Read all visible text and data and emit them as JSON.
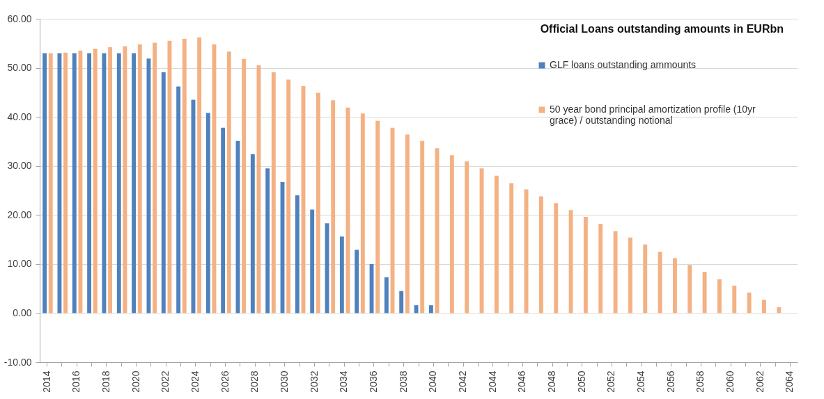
{
  "chart_data": {
    "type": "bar",
    "title": "Official Loans outstanding amounts in EURbn",
    "categories": [
      "2014",
      null,
      "2016",
      null,
      "2018",
      null,
      "2020",
      null,
      "2022",
      null,
      "2024",
      null,
      "2026",
      null,
      "2028",
      null,
      "2030",
      null,
      "2032",
      null,
      "2034",
      null,
      "2036",
      null,
      "2038",
      null,
      "2040",
      null,
      "2042",
      null,
      "2044",
      null,
      "2046",
      null,
      "2048",
      null,
      "2050",
      null,
      "2052",
      null,
      "2054",
      null,
      "2056",
      null,
      "2058",
      null,
      "2060",
      null,
      "2062",
      null,
      "2064"
    ],
    "series": [
      {
        "name": "GLF loans outstanding ammounts",
        "color": "#4f81bd",
        "values": [
          53.0,
          53.0,
          53.0,
          53.0,
          53.0,
          53.0,
          53.0,
          51.9,
          49.1,
          46.2,
          43.5,
          40.8,
          37.8,
          35.1,
          32.4,
          29.5,
          26.7,
          24.0,
          21.1,
          18.3,
          15.6,
          12.9,
          10.0,
          7.3,
          4.5,
          1.6,
          1.6,
          null,
          null,
          null,
          null,
          null,
          null,
          null,
          null,
          null,
          null,
          null,
          null,
          null,
          null,
          null,
          null,
          null,
          null,
          null,
          null,
          null,
          null,
          null,
          null
        ]
      },
      {
        "name": "50 year bond principal amortization profile (10yr grace) / outstanding notional",
        "color": "#f4b183",
        "values": [
          53.0,
          53.1,
          53.5,
          53.9,
          54.2,
          54.4,
          54.8,
          55.1,
          55.5,
          55.9,
          56.2,
          54.8,
          53.3,
          51.8,
          50.5,
          49.1,
          47.6,
          46.3,
          44.9,
          43.4,
          41.9,
          40.7,
          39.2,
          37.8,
          36.4,
          35.1,
          33.6,
          32.2,
          30.9,
          29.5,
          28.0,
          26.5,
          25.2,
          23.8,
          22.4,
          21.0,
          19.6,
          18.2,
          16.7,
          15.4,
          14.0,
          12.5,
          11.2,
          9.8,
          8.4,
          6.9,
          5.6,
          4.2,
          2.7,
          1.2,
          null
        ]
      }
    ],
    "ylim": [
      -10,
      60
    ],
    "yticks": [
      {
        "value": -10,
        "label": "-10.00"
      },
      {
        "value": 0,
        "label": "0.00"
      },
      {
        "value": 10,
        "label": "10.00"
      },
      {
        "value": 20,
        "label": "20.00"
      },
      {
        "value": 30,
        "label": "30.00"
      },
      {
        "value": 40,
        "label": "40.00"
      },
      {
        "value": 50,
        "label": "50.00"
      },
      {
        "value": 60,
        "label": "60.00"
      }
    ],
    "grid": "y",
    "legend": "top right"
  }
}
